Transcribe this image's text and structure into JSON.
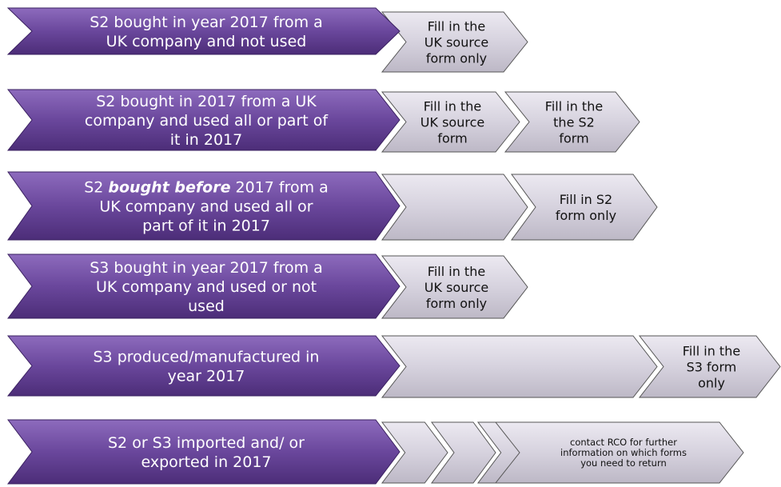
{
  "rows": [
    {
      "condition": [
        [
          "S2 bought in year 2017 from a"
        ],
        [
          "UK company and not used"
        ]
      ],
      "steps": [
        [
          "Fill in the",
          "UK source",
          "form only"
        ]
      ]
    },
    {
      "condition": [
        [
          "S2 bought in 2017 from a UK"
        ],
        [
          "company and used all or part of"
        ],
        [
          "it in 2017"
        ]
      ],
      "steps": [
        [
          "Fill in the",
          "UK source",
          "form"
        ],
        [
          "Fill in the",
          "the S2",
          "form"
        ]
      ]
    },
    {
      "condition": [
        [
          "S2 ",
          {
            "text": "bought before",
            "style": "bold-italic"
          },
          " 2017 from a"
        ],
        [
          "UK company  and used all or"
        ],
        [
          "part of it in 2017"
        ]
      ],
      "steps": [
        [
          "Fill in S2",
          "form only"
        ]
      ]
    },
    {
      "condition": [
        [
          "S3 bought in year 2017 from a"
        ],
        [
          "UK company and used or not"
        ],
        [
          "used"
        ]
      ],
      "steps": [
        [
          "Fill in the",
          "UK source",
          "form only"
        ]
      ]
    },
    {
      "condition": [
        [
          "S3  produced/manufactured in"
        ],
        [
          "year 2017"
        ]
      ],
      "steps": [
        [
          "Fill in the",
          "S3 form",
          "only"
        ]
      ]
    },
    {
      "condition": [
        [
          "S2 or S3 imported and/ or"
        ],
        [
          "exported in 2017"
        ]
      ],
      "steps": [
        [
          "contact RCO for further",
          "information on which forms",
          "you need to return"
        ]
      ]
    }
  ]
}
